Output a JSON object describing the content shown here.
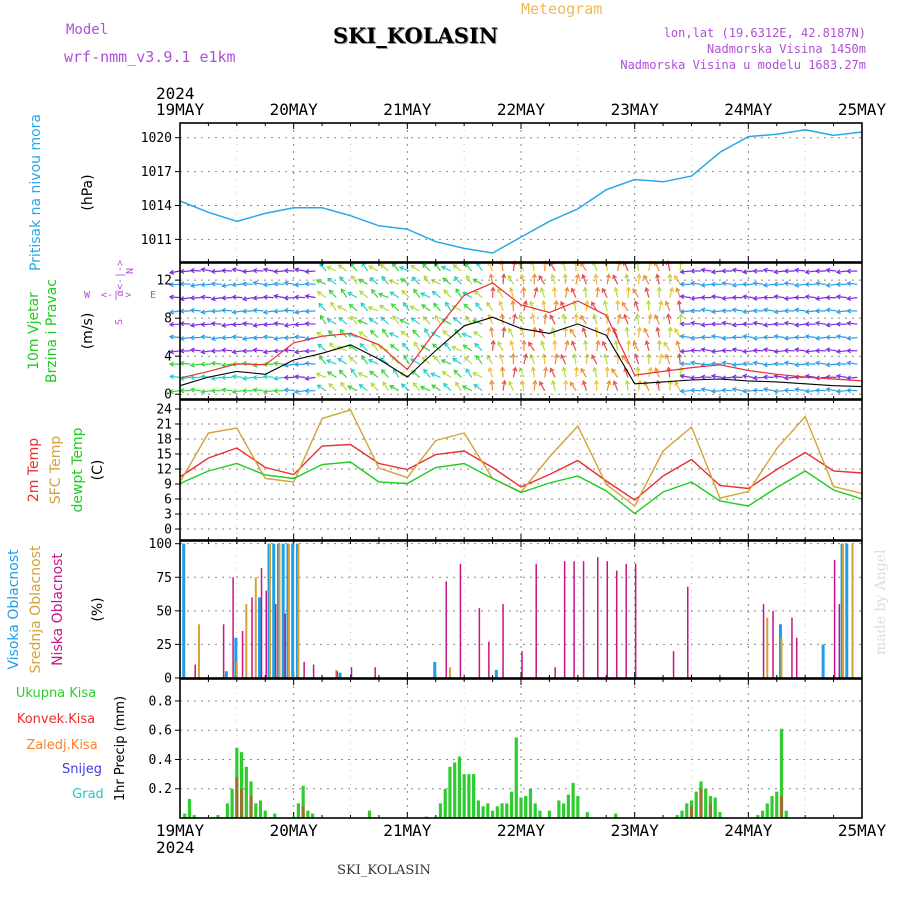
{
  "header": {
    "model_label": "Model",
    "model_name": "wrf-nmm_v3.9.1 e1km",
    "station_title": "SKI_KOLASIN",
    "meteogram_label": "Meteogram",
    "lonlat": "lon,lat (19.6312E, 42.8187N)",
    "elevation": "Nadmorska Visina 1450m",
    "model_elevation": "Nadmorska Visina u modelu 1683.27m",
    "year_top": "2024",
    "year_bottom": "2024",
    "footer_station": "SKI_KOLASIN",
    "watermark": "made by Angel"
  },
  "time_axis": {
    "labels": [
      "19MAY",
      "20MAY",
      "21MAY",
      "22MAY",
      "23MAY",
      "24MAY",
      "25MAY"
    ],
    "hours_total": 144
  },
  "wind_legend": {
    "north": "N",
    "west": "W",
    "east": "E",
    "south": "S",
    "arrow_h": "<-|->",
    "arrow_v": "α<-|->"
  },
  "colors": {
    "pressure": "#29a7e8",
    "wind_speed": "#000000",
    "wind_gust": "#e83030",
    "temp2m": "#e83030",
    "temp_sfc": "#d4a236",
    "dewpoint": "#1fcc1f",
    "cloud_high": "#1f9ee8",
    "cloud_mid": "#d4a236",
    "cloud_low": "#c71585",
    "precip_total": "#2ecc2e",
    "precip_conv": "#e83030",
    "precip_frz": "#ff7f2a",
    "snow": "#3d3ddb",
    "graupel": "#26c6c6",
    "grid": "#888888"
  },
  "chart_data": [
    {
      "type": "line",
      "title": "",
      "ylabel_lines": [
        "Pritisak na nivou mora",
        "(hPa)"
      ],
      "yticks": [
        1011,
        1014,
        1017,
        1020
      ],
      "ylim": [
        1009,
        1021.3
      ],
      "grid": true,
      "x_hours": [
        0,
        6,
        12,
        18,
        24,
        30,
        36,
        42,
        48,
        54,
        60,
        66,
        72,
        78,
        84,
        90,
        96,
        102,
        108,
        114,
        120,
        126,
        132,
        138,
        144
      ],
      "series": [
        {
          "values": [
            1014.4,
            1013.4,
            1012.6,
            1013.3,
            1013.8,
            1013.8,
            1013.1,
            1012.2,
            1011.9,
            1010.8,
            1010.2,
            1009.8,
            1011.2,
            1012.6,
            1013.7,
            1015.4,
            1016.3,
            1016.1,
            1016.6,
            1018.7,
            1020.1,
            1020.3,
            1020.7,
            1020.2,
            1020.5
          ]
        }
      ]
    },
    {
      "type": "line",
      "title": "",
      "ylabel_lines": [
        "10m Vjetar",
        "Brzina i Pravac",
        "(m/s)"
      ],
      "yticks": [
        0,
        4,
        8,
        12
      ],
      "ylim": [
        -0.5,
        13.8
      ],
      "grid": true,
      "x_hours": [
        0,
        6,
        12,
        18,
        24,
        30,
        36,
        42,
        48,
        54,
        60,
        66,
        72,
        78,
        84,
        90,
        96,
        102,
        108,
        114,
        120,
        126,
        132,
        138,
        144
      ],
      "series": [
        {
          "values": [
            0.9,
            1.8,
            2.4,
            2.1,
            3.6,
            4.3,
            5.2,
            3.7,
            1.8,
            4.6,
            7.2,
            8.1,
            6.9,
            6.4,
            7.4,
            6.2,
            1.1,
            1.3,
            1.5,
            1.6,
            1.4,
            1.3,
            1.1,
            0.9,
            0.8
          ]
        },
        {
          "values": [
            1.7,
            2.4,
            3.2,
            3.1,
            5.4,
            6.1,
            6.4,
            5.2,
            2.6,
            6.7,
            10.4,
            11.7,
            9.4,
            8.6,
            9.8,
            8.3,
            2.0,
            2.4,
            2.8,
            3.1,
            2.5,
            2.1,
            1.8,
            1.6,
            1.4
          ]
        }
      ]
    },
    {
      "type": "line",
      "title": "",
      "ylabel_lines": [
        "2m Temp",
        "SFC Temp",
        "dewpt Temp",
        "(C)"
      ],
      "yticks": [
        0,
        3,
        6,
        9,
        12,
        15,
        18,
        21,
        24
      ],
      "ylim": [
        -2.2,
        25.8
      ],
      "grid": true,
      "x_hours": [
        0,
        6,
        12,
        18,
        24,
        30,
        36,
        42,
        48,
        54,
        60,
        66,
        72,
        78,
        84,
        90,
        96,
        102,
        108,
        114,
        120,
        126,
        132,
        138,
        144
      ],
      "series": [
        {
          "values": [
            10.4,
            14.2,
            16.2,
            12.3,
            10.9,
            16.6,
            16.9,
            13.1,
            11.9,
            14.9,
            15.6,
            12.3,
            8.4,
            10.9,
            13.7,
            9.6,
            5.8,
            10.6,
            13.9,
            8.7,
            8.1,
            11.9,
            15.3,
            11.6,
            11.2
          ]
        },
        {
          "values": [
            9.4,
            19.2,
            20.2,
            10.1,
            9.4,
            22.1,
            23.8,
            12.2,
            10.3,
            17.7,
            19.2,
            10.1,
            7.4,
            14.4,
            20.6,
            8.9,
            4.6,
            15.6,
            20.4,
            6.2,
            7.5,
            16.1,
            22.5,
            8.5,
            7.1
          ]
        },
        {
          "values": [
            9.1,
            11.6,
            13.1,
            10.8,
            10.1,
            12.9,
            13.4,
            9.4,
            9.1,
            12.3,
            13.1,
            10.1,
            7.3,
            9.2,
            10.6,
            7.6,
            3.1,
            7.4,
            9.4,
            5.6,
            4.6,
            8.3,
            11.6,
            7.8,
            6.0
          ]
        }
      ]
    },
    {
      "type": "bar",
      "title": "",
      "ylabel_lines": [
        "Visoka Oblacnost",
        "Srednja Oblacnost",
        "Niska Oblacnost",
        "(%)"
      ],
      "yticks": [
        0,
        25,
        50,
        75,
        100
      ],
      "ylim": [
        0,
        102
      ],
      "grid": true,
      "series": [
        {
          "name": "Visoka Oblacnost",
          "points": [
            [
              1,
              100
            ],
            [
              10,
              5
            ],
            [
              12,
              30
            ],
            [
              17,
              60
            ],
            [
              19,
              100
            ],
            [
              20,
              100
            ],
            [
              21,
              100
            ],
            [
              22,
              100
            ],
            [
              23,
              100
            ],
            [
              24,
              100
            ],
            [
              25,
              100
            ],
            [
              34,
              4
            ],
            [
              54,
              12
            ],
            [
              67,
              6
            ],
            [
              127,
              40
            ],
            [
              136,
              25
            ],
            [
              140,
              100
            ],
            [
              141,
              100
            ]
          ]
        },
        {
          "name": "Srednja Oblacnost",
          "points": [
            [
              4,
              40
            ],
            [
              12,
              12
            ],
            [
              14,
              55
            ],
            [
              16,
              75
            ],
            [
              19,
              100
            ],
            [
              21,
              100
            ],
            [
              23,
              100
            ],
            [
              25,
              100
            ],
            [
              33,
              6
            ],
            [
              57,
              8
            ],
            [
              124,
              45
            ],
            [
              127,
              30
            ],
            [
              140,
              100
            ],
            [
              142,
              100
            ]
          ]
        },
        {
          "name": "Niska Oblacnost",
          "points": [
            [
              3,
              10
            ],
            [
              9,
              40
            ],
            [
              11,
              75
            ],
            [
              13,
              35
            ],
            [
              15,
              60
            ],
            [
              17,
              82
            ],
            [
              18,
              65
            ],
            [
              20,
              55
            ],
            [
              22,
              48
            ],
            [
              26,
              12
            ],
            [
              28,
              10
            ],
            [
              33,
              5
            ],
            [
              36,
              8
            ],
            [
              41,
              8
            ],
            [
              56,
              72
            ],
            [
              59,
              85
            ],
            [
              63,
              52
            ],
            [
              65,
              27
            ],
            [
              68,
              55
            ],
            [
              72,
              20
            ],
            [
              75,
              85
            ],
            [
              79,
              8
            ],
            [
              81,
              87
            ],
            [
              83,
              87
            ],
            [
              85,
              87
            ],
            [
              88,
              90
            ],
            [
              90,
              87
            ],
            [
              92,
              80
            ],
            [
              94,
              85
            ],
            [
              96,
              85
            ],
            [
              104,
              20
            ],
            [
              107,
              68
            ],
            [
              123,
              55
            ],
            [
              125,
              50
            ],
            [
              129,
              45
            ],
            [
              130,
              30
            ],
            [
              138,
              88
            ],
            [
              139,
              55
            ]
          ]
        }
      ]
    },
    {
      "type": "bar",
      "title": "",
      "ylabel_lines": [
        "1hr Precip (mm)"
      ],
      "legend": [
        "Ukupna Kisa",
        "Konvek.Kisa",
        "Zaledj.Kisa",
        "Snijeg",
        "Grad"
      ],
      "yticks": [
        0.2,
        0.4,
        0.6,
        0.8
      ],
      "ylim": [
        0,
        0.95
      ],
      "grid": true,
      "series": [
        {
          "name": "Ukupna Kisa",
          "points": [
            [
              1,
              0.03
            ],
            [
              2,
              0.13
            ],
            [
              3,
              0.02
            ],
            [
              8,
              0.02
            ],
            [
              10,
              0.1
            ],
            [
              11,
              0.2
            ],
            [
              12,
              0.48
            ],
            [
              13,
              0.45
            ],
            [
              14,
              0.35
            ],
            [
              15,
              0.25
            ],
            [
              16,
              0.1
            ],
            [
              17,
              0.12
            ],
            [
              18,
              0.05
            ],
            [
              20,
              0.03
            ],
            [
              24,
              0.01
            ],
            [
              25,
              0.1
            ],
            [
              26,
              0.22
            ],
            [
              27,
              0.05
            ],
            [
              28,
              0.03
            ],
            [
              40,
              0.05
            ],
            [
              52,
              0.01
            ],
            [
              54,
              0.01
            ],
            [
              55,
              0.1
            ],
            [
              56,
              0.2
            ],
            [
              57,
              0.35
            ],
            [
              58,
              0.38
            ],
            [
              59,
              0.42
            ],
            [
              60,
              0.3
            ],
            [
              61,
              0.3
            ],
            [
              62,
              0.3
            ],
            [
              63,
              0.12
            ],
            [
              64,
              0.08
            ],
            [
              65,
              0.1
            ],
            [
              66,
              0.05
            ],
            [
              67,
              0.08
            ],
            [
              68,
              0.1
            ],
            [
              69,
              0.1
            ],
            [
              70,
              0.18
            ],
            [
              71,
              0.55
            ],
            [
              72,
              0.14
            ],
            [
              73,
              0.15
            ],
            [
              74,
              0.2
            ],
            [
              75,
              0.1
            ],
            [
              76,
              0.05
            ],
            [
              78,
              0.05
            ],
            [
              80,
              0.12
            ],
            [
              81,
              0.1
            ],
            [
              82,
              0.16
            ],
            [
              83,
              0.24
            ],
            [
              84,
              0.15
            ],
            [
              86,
              0.04
            ],
            [
              92,
              0.03
            ],
            [
              105,
              0.02
            ],
            [
              106,
              0.05
            ],
            [
              107,
              0.1
            ],
            [
              108,
              0.12
            ],
            [
              109,
              0.18
            ],
            [
              110,
              0.25
            ],
            [
              111,
              0.2
            ],
            [
              112,
              0.15
            ],
            [
              113,
              0.14
            ],
            [
              114,
              0.04
            ],
            [
              122,
              0.02
            ],
            [
              123,
              0.05
            ],
            [
              124,
              0.1
            ],
            [
              125,
              0.15
            ],
            [
              126,
              0.18
            ],
            [
              127,
              0.61
            ],
            [
              128,
              0.05
            ]
          ]
        },
        {
          "name": "Konvek.Kisa",
          "points": [
            [
              12,
              0.28
            ],
            [
              13,
              0.2
            ],
            [
              15,
              0.15
            ],
            [
              26,
              0.08
            ],
            [
              108,
              0.08
            ],
            [
              110,
              0.2
            ],
            [
              112,
              0.1
            ],
            [
              127,
              0.15
            ]
          ]
        }
      ]
    }
  ]
}
